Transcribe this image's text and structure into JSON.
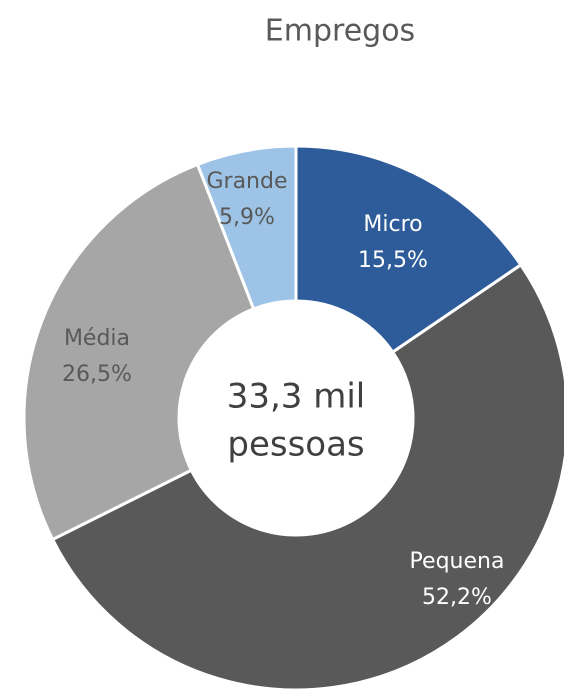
{
  "chart_data": {
    "type": "donut",
    "title": "Empregos",
    "categories": [
      "Micro",
      "Pequena",
      "Média",
      "Grande"
    ],
    "values": [
      15.5,
      52.2,
      26.5,
      5.9
    ],
    "value_labels": [
      "15,5%",
      "52,2%",
      "26,5%",
      "5,9%"
    ],
    "colors": [
      "#2e5c9a",
      "#595959",
      "#a6a6a6",
      "#9dc3e6"
    ],
    "center_text": [
      "33,3 mil",
      "pessoas"
    ]
  }
}
